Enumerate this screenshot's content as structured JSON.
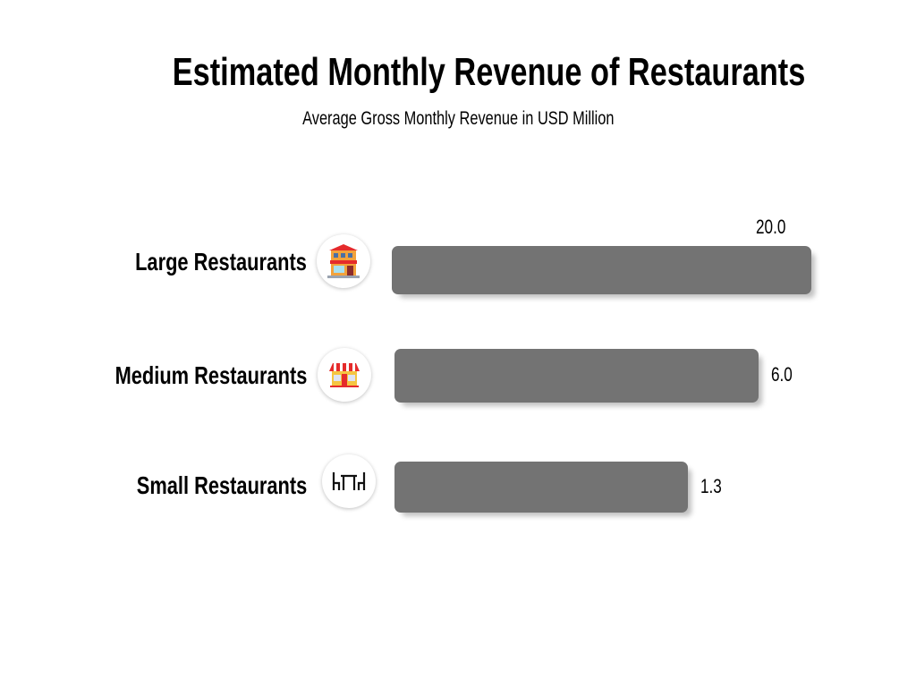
{
  "chart_data": {
    "type": "bar",
    "orientation": "horizontal",
    "title": "Estimated Monthly Revenue of Restaurants",
    "subtitle": "Average Gross Monthly Revenue in USD Million",
    "categories": [
      "Large Restaurants",
      "Medium Restaurants",
      "Small Restaurants"
    ],
    "values": [
      20.0,
      6.0,
      1.3
    ],
    "value_labels": [
      "20.0",
      "6.0",
      "1.3"
    ],
    "icons": [
      "restaurant-building-icon",
      "storefront-icon",
      "dining-table-icon"
    ],
    "bar_color": "#737373",
    "grid": false,
    "legend": "none"
  }
}
